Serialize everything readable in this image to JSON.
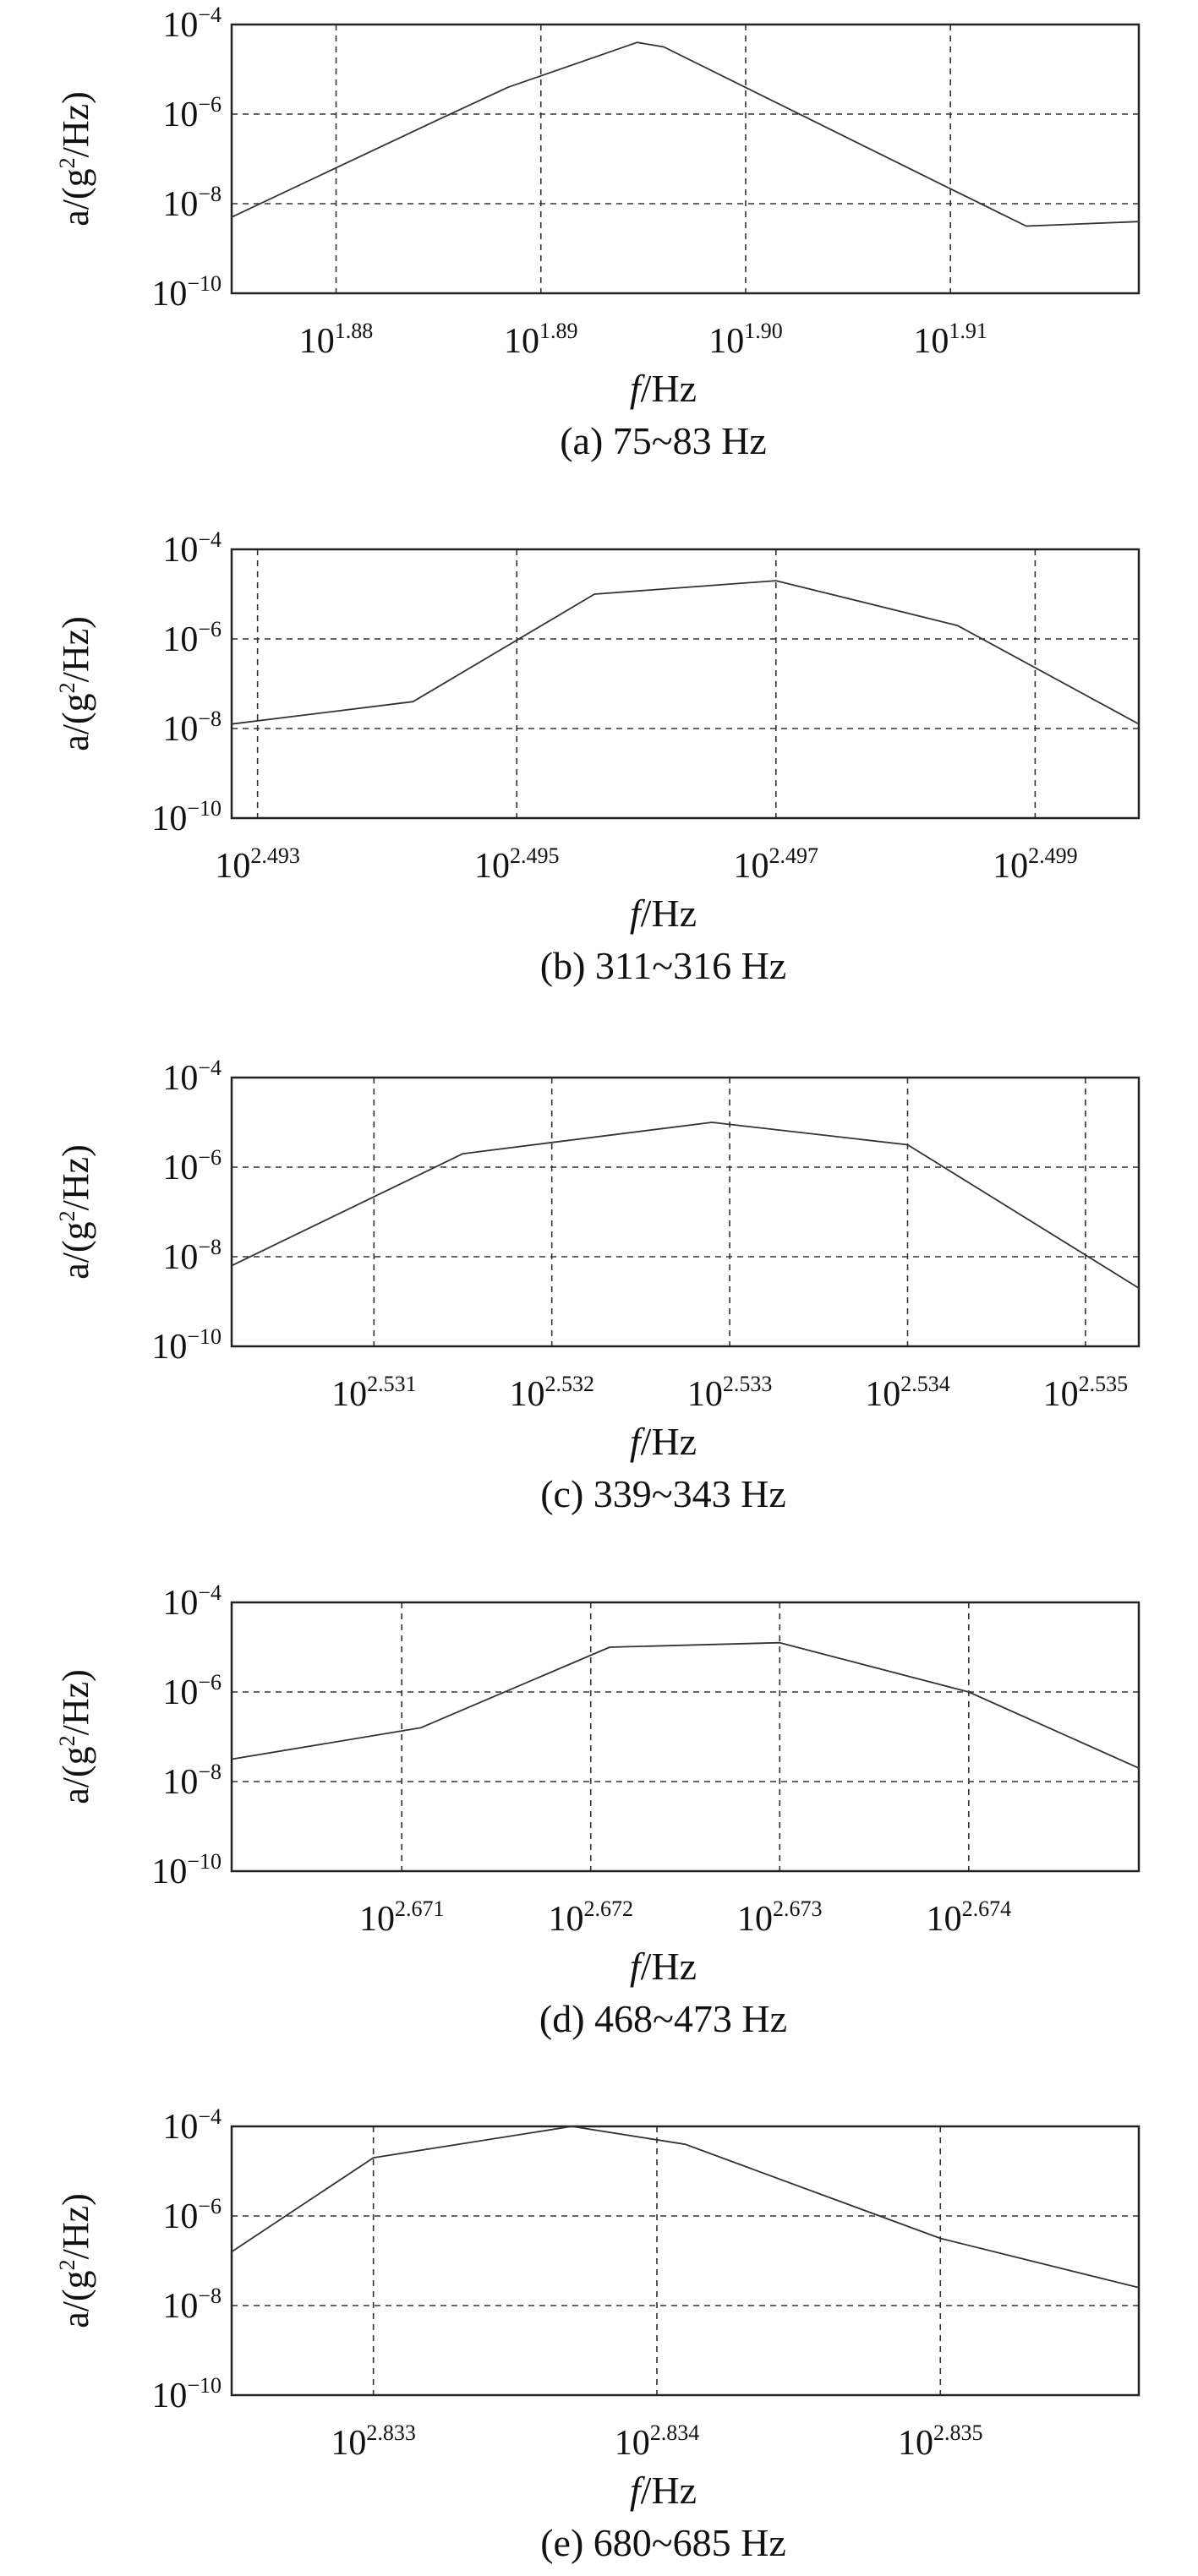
{
  "chart_data": [
    {
      "type": "line",
      "panel_label": "(a)",
      "caption": "(a) 75~83 Hz",
      "caption_parts": {
        "label": "(a)",
        "range": "75~83 Hz"
      },
      "xlabel": {
        "italic": "f",
        "rest": "/Hz"
      },
      "ylabel": {
        "pre": "a/(g",
        "sup": "2",
        "post": "/Hz)"
      },
      "x_scale": "log10",
      "y_scale": "log10",
      "x_exponent_range": [
        1.8749,
        1.9192
      ],
      "y_exponent_range": [
        -10,
        -4
      ],
      "x_ticks": [
        {
          "base": "10",
          "exp": "1.88",
          "value": 1.88
        },
        {
          "base": "10",
          "exp": "1.89",
          "value": 1.89
        },
        {
          "base": "10",
          "exp": "1.90",
          "value": 1.9
        },
        {
          "base": "10",
          "exp": "1.91",
          "value": 1.91
        }
      ],
      "y_ticks": [
        {
          "base": "10",
          "exp": "−4",
          "value": -4
        },
        {
          "base": "10",
          "exp": "−6",
          "value": -6
        },
        {
          "base": "10",
          "exp": "−8",
          "value": -8
        },
        {
          "base": "10",
          "exp": "−10",
          "value": -10
        }
      ],
      "grid": true,
      "series": [
        {
          "x_log10": [
            1.8749,
            1.8851,
            1.8884,
            1.8947,
            1.896,
            1.9097,
            1.9137,
            1.9192
          ],
          "y_log10": [
            -8.3,
            -6.1,
            -5.4,
            -4.4,
            -4.5,
            -7.6,
            -8.5,
            -8.4
          ]
        }
      ]
    },
    {
      "type": "line",
      "panel_label": "(b)",
      "caption": "(b) 311~316 Hz",
      "caption_parts": {
        "label": "(b)",
        "range": "311~316 Hz"
      },
      "xlabel": {
        "italic": "f",
        "rest": "/Hz"
      },
      "ylabel": {
        "pre": "a/(g",
        "sup": "2",
        "post": "/Hz)"
      },
      "x_scale": "log10",
      "y_scale": "log10",
      "x_exponent_range": [
        2.4928,
        2.4998
      ],
      "y_exponent_range": [
        -10,
        -4
      ],
      "x_ticks": [
        {
          "base": "10",
          "exp": "2.493",
          "value": 2.493
        },
        {
          "base": "10",
          "exp": "2.495",
          "value": 2.495
        },
        {
          "base": "10",
          "exp": "2.497",
          "value": 2.497
        },
        {
          "base": "10",
          "exp": "2.499",
          "value": 2.499
        }
      ],
      "y_ticks": [
        {
          "base": "10",
          "exp": "−4",
          "value": -4
        },
        {
          "base": "10",
          "exp": "−6",
          "value": -6
        },
        {
          "base": "10",
          "exp": "−8",
          "value": -8
        },
        {
          "base": "10",
          "exp": "−10",
          "value": -10
        }
      ],
      "grid": true,
      "series": [
        {
          "x_log10": [
            2.4928,
            2.4942,
            2.4956,
            2.497,
            2.4984,
            2.4998
          ],
          "y_log10": [
            -7.9,
            -7.4,
            -5.0,
            -4.7,
            -5.7,
            -7.9
          ]
        }
      ]
    },
    {
      "type": "line",
      "panel_label": "(c)",
      "caption": "(c) 339~343 Hz",
      "caption_parts": {
        "label": "(c)",
        "range": "339~343 Hz"
      },
      "xlabel": {
        "italic": "f",
        "rest": "/Hz"
      },
      "ylabel": {
        "pre": "a/(g",
        "sup": "2",
        "post": "/Hz)"
      },
      "x_scale": "log10",
      "y_scale": "log10",
      "x_exponent_range": [
        2.5302,
        2.5353
      ],
      "y_exponent_range": [
        -10,
        -4
      ],
      "x_ticks": [
        {
          "base": "10",
          "exp": "2.531",
          "value": 2.531
        },
        {
          "base": "10",
          "exp": "2.532",
          "value": 2.532
        },
        {
          "base": "10",
          "exp": "2.533",
          "value": 2.533
        },
        {
          "base": "10",
          "exp": "2.534",
          "value": 2.534
        },
        {
          "base": "10",
          "exp": "2.535",
          "value": 2.535
        }
      ],
      "y_ticks": [
        {
          "base": "10",
          "exp": "−4",
          "value": -4
        },
        {
          "base": "10",
          "exp": "−6",
          "value": -6
        },
        {
          "base": "10",
          "exp": "−8",
          "value": -8
        },
        {
          "base": "10",
          "exp": "−10",
          "value": -10
        }
      ],
      "grid": true,
      "series": [
        {
          "x_log10": [
            2.5302,
            2.5315,
            2.5329,
            2.534,
            2.5353
          ],
          "y_log10": [
            -8.2,
            -5.7,
            -5.0,
            -5.5,
            -8.7
          ]
        }
      ]
    },
    {
      "type": "line",
      "panel_label": "(d)",
      "caption": "(d) 468~473 Hz",
      "caption_parts": {
        "label": "(d)",
        "range": "468~473 Hz"
      },
      "xlabel": {
        "italic": "f",
        "rest": "/Hz"
      },
      "ylabel": {
        "pre": "a/(g",
        "sup": "2",
        "post": "/Hz)"
      },
      "x_scale": "log10",
      "y_scale": "log10",
      "x_exponent_range": [
        2.6701,
        2.6749
      ],
      "y_exponent_range": [
        -10,
        -4
      ],
      "x_ticks": [
        {
          "base": "10",
          "exp": "2.671",
          "value": 2.671
        },
        {
          "base": "10",
          "exp": "2.672",
          "value": 2.672
        },
        {
          "base": "10",
          "exp": "2.673",
          "value": 2.673
        },
        {
          "base": "10",
          "exp": "2.674",
          "value": 2.674
        }
      ],
      "y_ticks": [
        {
          "base": "10",
          "exp": "−4",
          "value": -4
        },
        {
          "base": "10",
          "exp": "−6",
          "value": -6
        },
        {
          "base": "10",
          "exp": "−8",
          "value": -8
        },
        {
          "base": "10",
          "exp": "−10",
          "value": -10
        }
      ],
      "grid": true,
      "series": [
        {
          "x_log10": [
            2.6701,
            2.6711,
            2.6721,
            2.673,
            2.674,
            2.6749
          ],
          "y_log10": [
            -7.5,
            -6.8,
            -5.0,
            -4.9,
            -6.0,
            -7.7
          ]
        }
      ]
    },
    {
      "type": "line",
      "panel_label": "(e)",
      "caption": "(e) 680~685 Hz",
      "caption_parts": {
        "label": "(e)",
        "range": "680~685 Hz"
      },
      "xlabel": {
        "italic": "f",
        "rest": "/Hz"
      },
      "ylabel": {
        "pre": "a/(g",
        "sup": "2",
        "post": "/Hz)"
      },
      "x_scale": "log10",
      "y_scale": "log10",
      "x_exponent_range": [
        2.8325,
        2.8357
      ],
      "y_exponent_range": [
        -10,
        -4
      ],
      "x_ticks": [
        {
          "base": "10",
          "exp": "2.833",
          "value": 2.833
        },
        {
          "base": "10",
          "exp": "2.834",
          "value": 2.834
        },
        {
          "base": "10",
          "exp": "2.835",
          "value": 2.835
        }
      ],
      "y_ticks": [
        {
          "base": "10",
          "exp": "−4",
          "value": -4
        },
        {
          "base": "10",
          "exp": "−6",
          "value": -6
        },
        {
          "base": "10",
          "exp": "−8",
          "value": -8
        },
        {
          "base": "10",
          "exp": "−10",
          "value": -10
        }
      ],
      "grid": true,
      "series": [
        {
          "x_log10": [
            2.8325,
            2.833,
            2.8337,
            2.8341,
            2.835,
            2.8357
          ],
          "y_log10": [
            -6.8,
            -4.7,
            -4.0,
            -4.4,
            -6.5,
            -7.6
          ]
        }
      ]
    }
  ]
}
